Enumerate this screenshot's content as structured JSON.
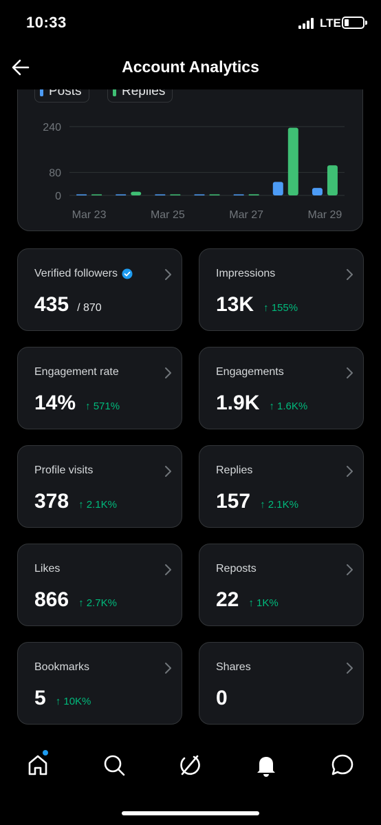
{
  "status": {
    "time": "10:33",
    "network": "LTE"
  },
  "header": {
    "title": "Account Analytics"
  },
  "chart_legend": {
    "posts_label": "Posts",
    "replies_label": "Replies"
  },
  "colors": {
    "posts": "#4c9bf5",
    "replies": "#3fbf74",
    "positive_delta": "#00ba7c",
    "accent": "#1d9bf0"
  },
  "chart_data": {
    "type": "bar",
    "categories": [
      "Mar 23",
      "Mar 24",
      "Mar 25",
      "Mar 26",
      "Mar 27",
      "Mar 28",
      "Mar 29"
    ],
    "x_tick_labels": [
      "Mar 23",
      "Mar 25",
      "Mar 27",
      "Mar 29"
    ],
    "y_ticks": [
      0,
      80,
      240
    ],
    "ylim": [
      0,
      240
    ],
    "grid": true,
    "series": [
      {
        "name": "Posts",
        "values": [
          0,
          0,
          1,
          0,
          0,
          47,
          26
        ]
      },
      {
        "name": "Replies",
        "values": [
          2,
          13,
          2,
          1,
          4,
          236,
          105
        ]
      }
    ]
  },
  "metrics": [
    {
      "label": "Verified followers",
      "value": "435",
      "sub": "/ 870",
      "delta": "",
      "verified": true
    },
    {
      "label": "Impressions",
      "value": "13K",
      "sub": "",
      "delta": "↑ 155%"
    },
    {
      "label": "Engagement rate",
      "value": "14%",
      "sub": "",
      "delta": "↑ 571%"
    },
    {
      "label": "Engagements",
      "value": "1.9K",
      "sub": "",
      "delta": "↑ 1.6K%"
    },
    {
      "label": "Profile visits",
      "value": "378",
      "sub": "",
      "delta": "↑ 2.1K%"
    },
    {
      "label": "Replies",
      "value": "157",
      "sub": "",
      "delta": "↑ 2.1K%"
    },
    {
      "label": "Likes",
      "value": "866",
      "sub": "",
      "delta": "↑ 2.7K%"
    },
    {
      "label": "Reposts",
      "value": "22",
      "sub": "",
      "delta": "↑ 1K%"
    },
    {
      "label": "Bookmarks",
      "value": "5",
      "sub": "",
      "delta": "↑ 10K%"
    },
    {
      "label": "Shares",
      "value": "0",
      "sub": "",
      "delta": ""
    }
  ],
  "nav": {
    "items": [
      "home-icon",
      "search-icon",
      "grok-icon",
      "notifications-icon",
      "messages-icon"
    ],
    "home_has_badge": true
  }
}
